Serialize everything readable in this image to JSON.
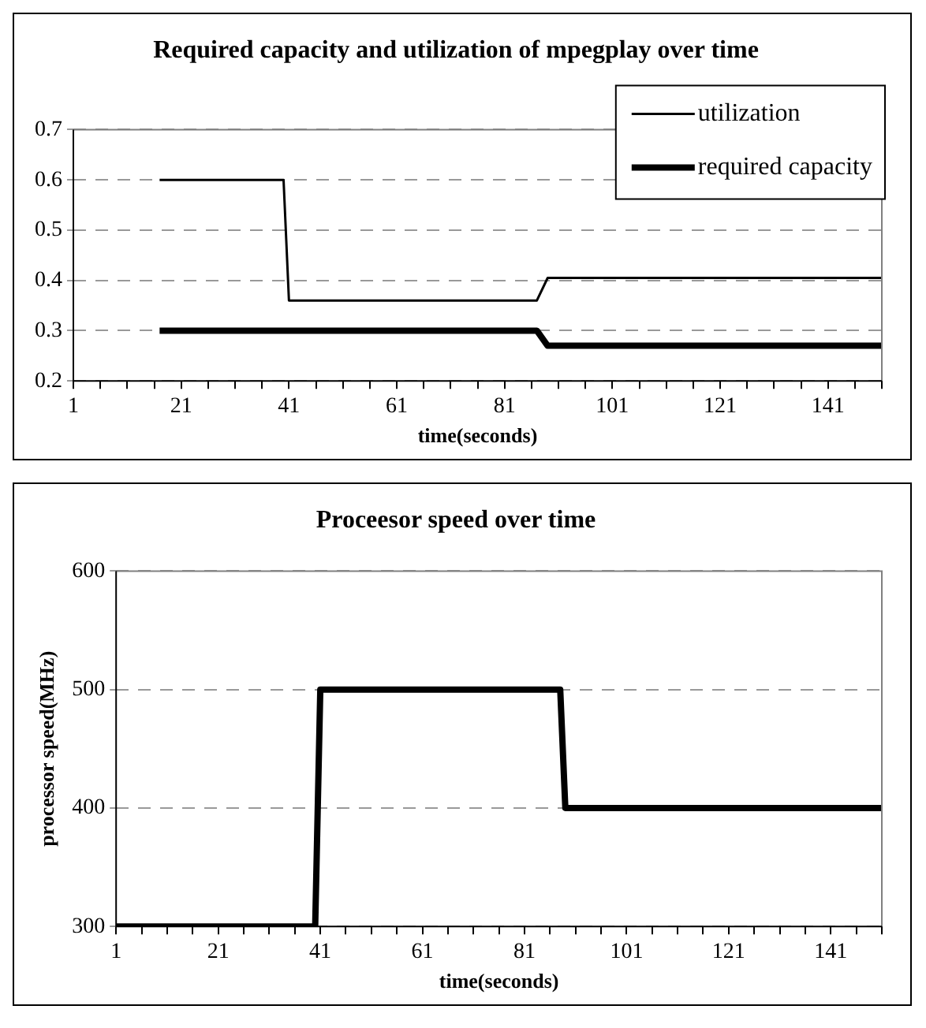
{
  "chart_data": [
    {
      "type": "line",
      "title": "Required capacity and utilization of mpegplay over time",
      "xlabel": "time(seconds)",
      "series": [
        {
          "name": "utilization",
          "color": "#000000",
          "x": [
            17,
            40,
            41,
            87,
            89,
            151
          ],
          "values": [
            0.6,
            0.6,
            0.36,
            0.36,
            0.405,
            0.405
          ]
        },
        {
          "name": "required capacity",
          "color": "#000000",
          "x": [
            17,
            87,
            89,
            151
          ],
          "values": [
            0.3,
            0.3,
            0.27,
            0.27
          ]
        }
      ],
      "xlim": [
        1,
        151
      ],
      "xticks": [
        1,
        {
          "value": 6,
          "label": null
        },
        {
          "value": 11,
          "label": null
        },
        {
          "value": 16,
          "label": null
        },
        21,
        {
          "value": 26,
          "label": null
        },
        {
          "value": 31,
          "label": null
        },
        {
          "value": 36,
          "label": null
        },
        41,
        {
          "value": 46,
          "label": null
        },
        {
          "value": 51,
          "label": null
        },
        {
          "value": 56,
          "label": null
        },
        61,
        {
          "value": 66,
          "label": null
        },
        {
          "value": 71,
          "label": null
        },
        {
          "value": 76,
          "label": null
        },
        81,
        {
          "value": 86,
          "label": null
        },
        {
          "value": 91,
          "label": null
        },
        {
          "value": 96,
          "label": null
        },
        101,
        {
          "value": 106,
          "label": null
        },
        {
          "value": 111,
          "label": null
        },
        {
          "value": 116,
          "label": null
        },
        121,
        {
          "value": 126,
          "label": null
        },
        {
          "value": 131,
          "label": null
        },
        {
          "value": 136,
          "label": null
        },
        141,
        {
          "value": 146,
          "label": null
        },
        {
          "value": 151,
          "label": null
        }
      ],
      "ylim": [
        0.2,
        0.7
      ],
      "yticks": [
        0.2,
        0.3,
        0.4,
        0.5,
        0.6,
        0.7
      ],
      "grid": "y",
      "legend": "top right"
    },
    {
      "type": "line",
      "title": "Proceesor speed over time",
      "xlabel": "time(seconds)",
      "ylabel": "processor speed(MHz)",
      "series": [
        {
          "color": "#000000",
          "x": [
            1,
            40,
            41,
            88,
            89,
            151
          ],
          "values": [
            300,
            300,
            500,
            500,
            400,
            400
          ]
        }
      ],
      "xlim": [
        1,
        151
      ],
      "xticks": [
        1,
        {
          "value": 6,
          "label": null
        },
        {
          "value": 11,
          "label": null
        },
        {
          "value": 16,
          "label": null
        },
        21,
        {
          "value": 26,
          "label": null
        },
        {
          "value": 31,
          "label": null
        },
        {
          "value": 36,
          "label": null
        },
        41,
        {
          "value": 46,
          "label": null
        },
        {
          "value": 51,
          "label": null
        },
        {
          "value": 56,
          "label": null
        },
        61,
        {
          "value": 66,
          "label": null
        },
        {
          "value": 71,
          "label": null
        },
        {
          "value": 76,
          "label": null
        },
        81,
        {
          "value": 86,
          "label": null
        },
        {
          "value": 91,
          "label": null
        },
        {
          "value": 96,
          "label": null
        },
        101,
        {
          "value": 106,
          "label": null
        },
        {
          "value": 111,
          "label": null
        },
        {
          "value": 116,
          "label": null
        },
        121,
        {
          "value": 126,
          "label": null
        },
        {
          "value": 131,
          "label": null
        },
        {
          "value": 136,
          "label": null
        },
        141,
        {
          "value": 146,
          "label": null
        },
        {
          "value": 151,
          "label": null
        }
      ],
      "ylim": [
        300,
        600
      ],
      "yticks": [
        300,
        400,
        500,
        600
      ],
      "grid": "y"
    }
  ]
}
